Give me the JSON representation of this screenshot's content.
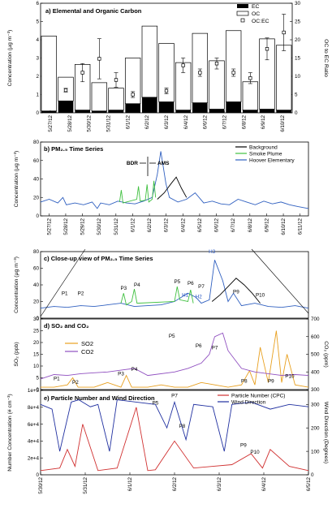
{
  "chart_data": [
    {
      "panel": "a",
      "type": "bar",
      "title": "a) Elemental and Organic Carbon",
      "ylabel": "Concentration (µg m⁻³)",
      "y2label": "OC to EC Ratio",
      "ylim": [
        0,
        6
      ],
      "y2lim": [
        0,
        30
      ],
      "yticks": [
        0,
        1,
        2,
        3,
        4,
        5,
        6
      ],
      "y2ticks": [
        0,
        5,
        10,
        15,
        20,
        25,
        30
      ],
      "categories": [
        "5/27/12",
        "5/28/12",
        "5/29/12",
        "5/30/12",
        "5/31/12",
        "6/1/12",
        "6/2/12",
        "6/3/12",
        "6/4/12",
        "6/5/12",
        "6/6/12",
        "6/7/12",
        "6/8/12",
        "6/9/12",
        "6/10/12"
      ],
      "x_tick_labels": [
        "5/27/12",
        "5/28/12",
        "5/30/12",
        "5/31/12",
        "6/1/12",
        "6/2/12",
        "6/3/12",
        "6/4/12",
        "6/6/12",
        "6/7/12",
        "6/8/12",
        "6/9/12",
        "6/10/12"
      ],
      "legend": [
        "EC",
        "OC",
        "OC:EC"
      ],
      "legend_position": "top-right",
      "series": [
        {
          "name": "EC",
          "values": [
            0.1,
            0.65,
            0.15,
            0.1,
            0.15,
            0.5,
            0.85,
            0.6,
            0.15,
            0.55,
            0.2,
            0.6,
            0.15,
            0.2,
            0.15
          ]
        },
        {
          "name": "OC",
          "values": [
            4.1,
            1.3,
            2.5,
            1.55,
            1.2,
            2.5,
            3.9,
            3.2,
            2.6,
            3.8,
            2.65,
            3.9,
            1.55,
            3.85,
            3.55
          ]
        },
        {
          "name": "OC:EC",
          "values": [
            null,
            6.2,
            11,
            14.8,
            9,
            5,
            null,
            6,
            13,
            11,
            13.5,
            11,
            9.5,
            17.5,
            22
          ],
          "errors": [
            null,
            0.5,
            2.5,
            5.5,
            2,
            0.8,
            null,
            0.8,
            2,
            1,
            1.5,
            1,
            1.5,
            3,
            5
          ]
        }
      ]
    },
    {
      "panel": "b",
      "type": "line",
      "title": "b) PM₂.₅ Time Series",
      "ylabel": "Concentration (µg m⁻³)",
      "ylim": [
        0,
        80
      ],
      "yticks": [
        0,
        20,
        40,
        60,
        80
      ],
      "x_tick_labels": [
        "5/27/12",
        "5/28/12",
        "5/29/12",
        "5/30/12",
        "5/31/12",
        "6/1/12",
        "6/2/12",
        "6/3/12",
        "6/4/12",
        "6/5/12",
        "6/6/12",
        "6/7/12",
        "6/8/12",
        "6/9/12",
        "6/10/12",
        "6/11/12"
      ],
      "xlim_days": [
        0,
        15.6
      ],
      "legend": [
        "Background",
        "Smoke Plume",
        "Hoover Elementary"
      ],
      "legend_position": "top-right",
      "annotations": [
        "BDR",
        "AMS"
      ],
      "series": [
        {
          "name": "Hoover Elementary",
          "color": "#3060c0",
          "x": [
            0,
            0.5,
            1,
            1.3,
            1.5,
            2,
            2.5,
            3,
            3.3,
            3.5,
            4,
            4.5,
            5,
            5.5,
            6,
            6.5,
            6.8,
            7,
            7.3,
            7.5,
            8,
            8.5,
            9,
            9.5,
            10,
            10.5,
            11,
            11.5,
            12,
            12.5,
            13,
            13.5,
            14,
            14.5,
            15,
            15.6
          ],
          "y": [
            15,
            18,
            14,
            20,
            12,
            14,
            12,
            15,
            8,
            14,
            12,
            16,
            14,
            13,
            16,
            20,
            45,
            70,
            35,
            20,
            15,
            18,
            25,
            14,
            16,
            13,
            12,
            18,
            15,
            12,
            16,
            13,
            15,
            12,
            10,
            8
          ]
        },
        {
          "name": "Smoke Plume",
          "color": "#40c040",
          "x": [
            4.6,
            4.7,
            4.8,
            5.6,
            5.7,
            5.8,
            6.1,
            6.2,
            6.3,
            6.5,
            6.6,
            6.7
          ],
          "y": [
            15,
            28,
            14,
            18,
            32,
            16,
            17,
            34,
            15,
            18,
            38,
            20
          ]
        },
        {
          "name": "Background",
          "color": "#000000",
          "x": [
            6.8,
            7.2,
            7.6,
            7.9,
            8.2,
            8.5
          ],
          "y": [
            18,
            25,
            35,
            42,
            30,
            20
          ]
        }
      ]
    },
    {
      "panel": "c",
      "type": "line",
      "title": "c) Close-up view of PM₂.₅ Time Series",
      "ylabel": "Concentration (µg m⁻³)",
      "ylim": [
        0,
        80
      ],
      "yticks": [
        0,
        20,
        40,
        60,
        80
      ],
      "annotations": [
        "P1",
        "P2",
        "P3",
        "P4",
        "P5",
        "P6",
        "P7",
        "H1",
        "H2",
        "H3",
        "P9",
        "P10"
      ],
      "series": [
        {
          "name": "Hoover Elementary",
          "color": "#3060c0",
          "x": [
            0,
            0.5,
            1,
            1.5,
            2,
            2.5,
            3,
            3.5,
            4,
            4.5,
            5,
            5.5,
            5.8,
            6,
            6.3,
            6.5,
            6.8,
            7,
            7.2,
            7.5,
            8,
            8.5,
            9,
            9.5,
            10
          ],
          "y": [
            12,
            14,
            13,
            15,
            14,
            16,
            18,
            14,
            15,
            16,
            20,
            30,
            25,
            18,
            22,
            70,
            45,
            20,
            30,
            15,
            18,
            14,
            13,
            15,
            12
          ]
        },
        {
          "name": "Smoke Plume",
          "color": "#40c040",
          "x": [
            3.0,
            3.1,
            3.2,
            3.4,
            3.5,
            3.6,
            5.0,
            5.1,
            5.2,
            5.5,
            5.6,
            5.7
          ],
          "y": [
            18,
            30,
            16,
            20,
            35,
            18,
            20,
            38,
            22,
            20,
            34,
            18
          ]
        },
        {
          "name": "Background",
          "color": "#000000",
          "x": [
            6.4,
            6.7,
            7,
            7.3,
            7.6,
            7.9,
            8.2
          ],
          "y": [
            20,
            28,
            38,
            48,
            40,
            30,
            18
          ]
        }
      ]
    },
    {
      "panel": "d",
      "type": "line",
      "title": "d) SO₂ and CO₂",
      "ylabel": "SO₂ (ppb)",
      "y2label": "CO₂ (ppm)",
      "ylim": [
        0,
        30
      ],
      "y2lim": [
        300,
        700
      ],
      "yticks": [
        0,
        5,
        10,
        15,
        20,
        25,
        30
      ],
      "y2ticks": [
        300,
        400,
        500,
        600,
        700
      ],
      "legend": [
        "SO2",
        "CO2"
      ],
      "annotations": [
        "P1",
        "P2",
        "P3",
        "P4",
        "P5",
        "P6",
        "P7",
        "P8",
        "P9",
        "P10"
      ],
      "series": [
        {
          "name": "SO2",
          "color": "#e8a020",
          "x": [
            0,
            0.5,
            1,
            1.2,
            1.4,
            2,
            2.5,
            3,
            3.2,
            3.4,
            4,
            4.5,
            5,
            5.5,
            6,
            6.5,
            7,
            7.5,
            7.8,
            8,
            8.2,
            8.5,
            8.8,
            9,
            9.2,
            9.5,
            10
          ],
          "y": [
            1,
            1,
            2,
            5,
            1,
            1,
            3,
            1,
            6,
            1,
            1,
            2,
            1,
            1,
            3,
            2,
            1,
            2,
            8,
            2,
            18,
            3,
            25,
            3,
            15,
            2,
            1
          ]
        },
        {
          "name": "CO2",
          "color": "#9050c0",
          "x": [
            0,
            0.5,
            1,
            1.5,
            2,
            2.5,
            3,
            3.5,
            4,
            5,
            5.5,
            6,
            6.3,
            6.5,
            6.8,
            7,
            7.5,
            8,
            8.5,
            9,
            9.5,
            10
          ],
          "y": [
            360,
            385,
            380,
            390,
            395,
            400,
            410,
            420,
            380,
            400,
            420,
            450,
            500,
            600,
            620,
            520,
            420,
            400,
            390,
            380,
            385,
            380
          ]
        }
      ]
    },
    {
      "panel": "e",
      "type": "line",
      "title": "e) Particle Number and Wind Direction",
      "ylabel": "Number Concentration (# cm⁻³)",
      "y2label": "Wind Direction (Degrees)",
      "ylim": [
        0,
        100000
      ],
      "y2lim": [
        0,
        360
      ],
      "yticks": [
        "0",
        "2e+4",
        "4e+4",
        "6e+4",
        "8e+4",
        "1e+5"
      ],
      "y2ticks": [
        0,
        100,
        200,
        300
      ],
      "x_tick_labels": [
        "5/30/12",
        "5/31/12",
        "6/1/12",
        "6/2/12",
        "6/3/12",
        "6/4/12",
        "6/5/12"
      ],
      "legend": [
        "Particle Number (CPC)",
        "Wind Direction"
      ],
      "annotations": [
        "P5",
        "P7",
        "P8",
        "P9",
        "P10"
      ],
      "series": [
        {
          "name": "Particle Number (CPC)",
          "color": "#d03030",
          "x": [
            0,
            0.5,
            0.7,
            0.9,
            1.1,
            1.5,
            2,
            2.5,
            2.8,
            3,
            3.5,
            4,
            4.5,
            5,
            5.5,
            5.8,
            6,
            6.5,
            7
          ],
          "y": [
            5000,
            8000,
            30000,
            10000,
            60000,
            5000,
            8000,
            80000,
            5000,
            6000,
            40000,
            8000,
            10000,
            12000,
            25000,
            8000,
            30000,
            10000,
            5000
          ]
        },
        {
          "name": "Wind Direction",
          "color": "#2030a0",
          "x": [
            0,
            0.3,
            0.5,
            0.8,
            1,
            1.3,
            1.5,
            1.8,
            2,
            2.5,
            3,
            3.3,
            3.5,
            3.8,
            4,
            4.5,
            4.8,
            5,
            5.5,
            6,
            6.5,
            7
          ],
          "y": [
            300,
            280,
            100,
            310,
            320,
            290,
            300,
            100,
            320,
            310,
            300,
            200,
            310,
            150,
            300,
            290,
            100,
            300,
            310,
            280,
            300,
            290
          ]
        }
      ]
    }
  ]
}
